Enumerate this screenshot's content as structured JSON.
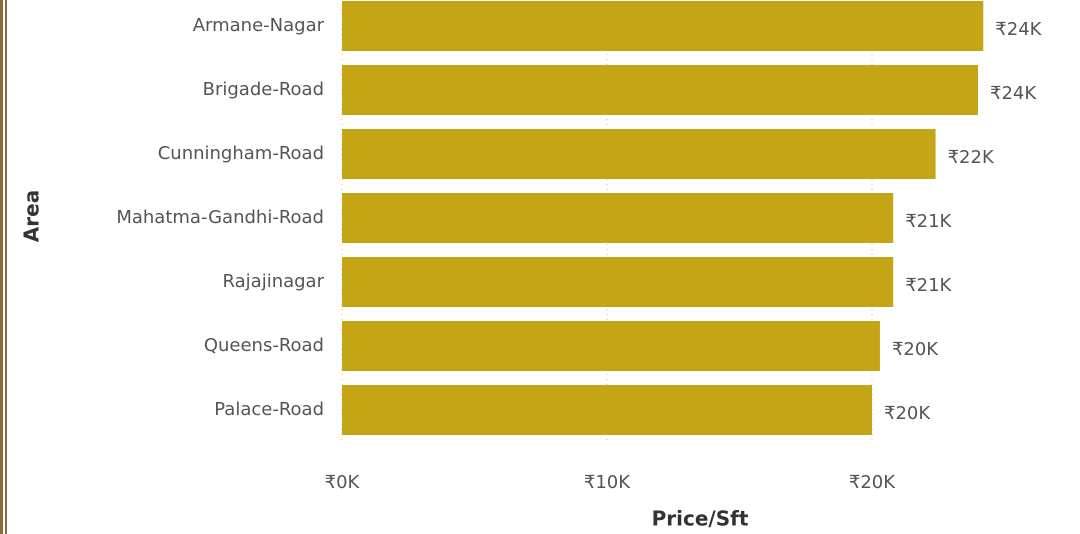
{
  "chart_data": {
    "type": "bar",
    "orientation": "horizontal",
    "x_label": "Price/Sft",
    "y_label": "Area",
    "categories": [
      "Armane-Nagar",
      "Brigade-Road",
      "Cunningham-Road",
      "Mahatma-Gandhi-Road",
      "Rajajinagar",
      "Queens-Road",
      "Palace-Road"
    ],
    "values": [
      24200,
      24000,
      22400,
      20800,
      20800,
      20300,
      20000
    ],
    "value_labels": [
      "₹24K",
      "₹24K",
      "₹22K",
      "₹21K",
      "₹21K",
      "₹20K",
      "₹20K"
    ],
    "color": "#c4a516",
    "xlim": [
      0,
      27000
    ],
    "xticks": [
      {
        "value": 0,
        "label": "₹0K"
      },
      {
        "value": 10000,
        "label": "₹10K"
      },
      {
        "value": 20000,
        "label": "₹20K"
      }
    ],
    "grid": true
  }
}
